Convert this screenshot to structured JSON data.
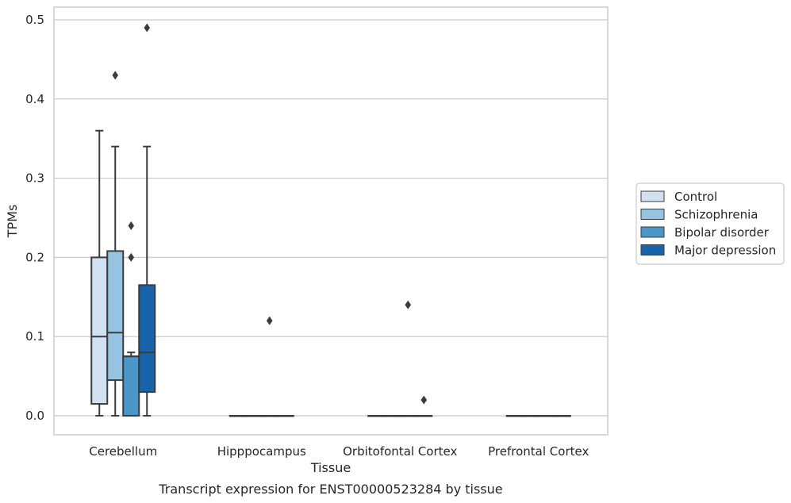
{
  "chart_data": {
    "type": "box",
    "title": "Transcript expression for ENST00000523284 by tissue",
    "xlabel": "Tissue",
    "ylabel": "TPMs",
    "ylim": [
      -0.024,
      0.516
    ],
    "yticks": [
      "0.0",
      "0.1",
      "0.2",
      "0.3",
      "0.4",
      "0.5"
    ],
    "yticks_values": [
      0.0,
      0.1,
      0.2,
      0.3,
      0.4,
      0.5
    ],
    "grid": true,
    "legend_position": "right",
    "categories": [
      "Cerebellum",
      "Hipppocampus",
      "Orbitofontal Cortex",
      "Prefrontal Cortex"
    ],
    "series": [
      {
        "name": "Control",
        "color": "#d0e1f2",
        "boxes": [
          {
            "whisker_low": 0.0,
            "q1": 0.015,
            "median": 0.1,
            "q3": 0.2,
            "whisker_high": 0.36,
            "outliers": []
          },
          {
            "whisker_low": 0.0,
            "q1": 0.0,
            "median": 0.0,
            "q3": 0.0,
            "whisker_high": 0.0,
            "outliers": []
          },
          {
            "whisker_low": 0.0,
            "q1": 0.0,
            "median": 0.0,
            "q3": 0.0,
            "whisker_high": 0.0,
            "outliers": []
          },
          {
            "whisker_low": 0.0,
            "q1": 0.0,
            "median": 0.0,
            "q3": 0.0,
            "whisker_high": 0.0,
            "outliers": []
          }
        ]
      },
      {
        "name": "Schizophrenia",
        "color": "#94c4df",
        "boxes": [
          {
            "whisker_low": 0.0,
            "q1": 0.045,
            "median": 0.105,
            "q3": 0.208,
            "whisker_high": 0.34,
            "outliers": [
              0.43
            ]
          },
          {
            "whisker_low": 0.0,
            "q1": 0.0,
            "median": 0.0,
            "q3": 0.0,
            "whisker_high": 0.0,
            "outliers": []
          },
          {
            "whisker_low": 0.0,
            "q1": 0.0,
            "median": 0.0,
            "q3": 0.0,
            "whisker_high": 0.0,
            "outliers": []
          },
          {
            "whisker_low": 0.0,
            "q1": 0.0,
            "median": 0.0,
            "q3": 0.0,
            "whisker_high": 0.0,
            "outliers": []
          }
        ]
      },
      {
        "name": "Bipolar disorder",
        "color": "#4a98c9",
        "boxes": [
          {
            "whisker_low": 0.0,
            "q1": 0.0,
            "median": 0.075,
            "q3": 0.075,
            "whisker_high": 0.08,
            "outliers": [
              0.2,
              0.24
            ]
          },
          {
            "whisker_low": 0.0,
            "q1": 0.0,
            "median": 0.0,
            "q3": 0.0,
            "whisker_high": 0.0,
            "outliers": [
              0.12
            ]
          },
          {
            "whisker_low": 0.0,
            "q1": 0.0,
            "median": 0.0,
            "q3": 0.0,
            "whisker_high": 0.0,
            "outliers": [
              0.14
            ]
          },
          {
            "whisker_low": 0.0,
            "q1": 0.0,
            "median": 0.0,
            "q3": 0.0,
            "whisker_high": 0.0,
            "outliers": []
          }
        ]
      },
      {
        "name": "Major depression",
        "color": "#1764ab",
        "boxes": [
          {
            "whisker_low": 0.0,
            "q1": 0.03,
            "median": 0.08,
            "q3": 0.165,
            "whisker_high": 0.34,
            "outliers": [
              0.49
            ]
          },
          {
            "whisker_low": 0.0,
            "q1": 0.0,
            "median": 0.0,
            "q3": 0.0,
            "whisker_high": 0.0,
            "outliers": []
          },
          {
            "whisker_low": 0.0,
            "q1": 0.0,
            "median": 0.0,
            "q3": 0.0,
            "whisker_high": 0.0,
            "outliers": [
              0.02
            ]
          },
          {
            "whisker_low": 0.0,
            "q1": 0.0,
            "median": 0.0,
            "q3": 0.0,
            "whisker_high": 0.0,
            "outliers": []
          }
        ]
      }
    ]
  }
}
